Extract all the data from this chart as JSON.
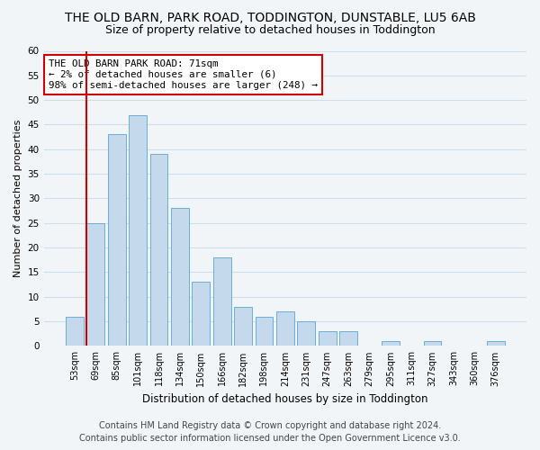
{
  "title": "THE OLD BARN, PARK ROAD, TODDINGTON, DUNSTABLE, LU5 6AB",
  "subtitle": "Size of property relative to detached houses in Toddington",
  "xlabel": "Distribution of detached houses by size in Toddington",
  "ylabel": "Number of detached properties",
  "categories": [
    "53sqm",
    "69sqm",
    "85sqm",
    "101sqm",
    "118sqm",
    "134sqm",
    "150sqm",
    "166sqm",
    "182sqm",
    "198sqm",
    "214sqm",
    "231sqm",
    "247sqm",
    "263sqm",
    "279sqm",
    "295sqm",
    "311sqm",
    "327sqm",
    "343sqm",
    "360sqm",
    "376sqm"
  ],
  "values": [
    6,
    25,
    43,
    47,
    39,
    28,
    13,
    18,
    8,
    6,
    7,
    5,
    3,
    3,
    0,
    1,
    0,
    1,
    0,
    0,
    1
  ],
  "bar_color": "#c5d9ed",
  "bar_edge_color": "#6aaed6",
  "reference_line_color": "#cc0000",
  "annotation_text": "THE OLD BARN PARK ROAD: 71sqm\n← 2% of detached houses are smaller (6)\n98% of semi-detached houses are larger (248) →",
  "annotation_box_color": "#ffffff",
  "annotation_box_edge_color": "#cc0000",
  "ylim": [
    0,
    60
  ],
  "yticks": [
    0,
    5,
    10,
    15,
    20,
    25,
    30,
    35,
    40,
    45,
    50,
    55,
    60
  ],
  "footer_line1": "Contains HM Land Registry data © Crown copyright and database right 2024.",
  "footer_line2": "Contains public sector information licensed under the Open Government Licence v3.0.",
  "background_color": "#f2f5f8",
  "plot_bg_color": "#f2f5f8",
  "grid_color": "#d0dce8",
  "title_fontsize": 10,
  "subtitle_fontsize": 9,
  "annotation_fontsize": 7.8,
  "footer_fontsize": 7,
  "ylabel_fontsize": 8,
  "xlabel_fontsize": 8.5
}
